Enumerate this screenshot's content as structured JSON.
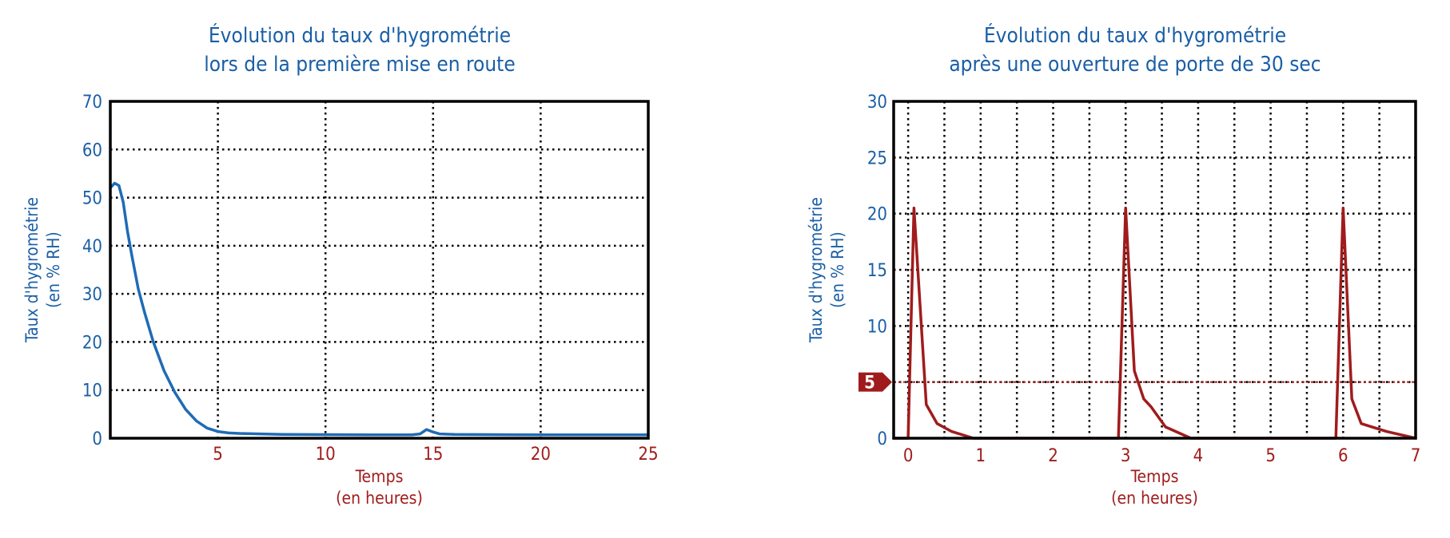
{
  "colors": {
    "title": "#1a5fa6",
    "x_axis": "#a01c1c",
    "y_axis": "#1a5fa6",
    "series_left": "#1f6bb5",
    "series_right": "#a01c1c",
    "marker": "#a01c1c"
  },
  "chart_data": [
    {
      "type": "line",
      "title_lines": [
        "Évolution du taux d'hygrométrie",
        "lors de la première mise en route"
      ],
      "xlabel_lines": [
        "Temps",
        "(en heures)"
      ],
      "ylabel_lines": [
        "Taux d'hygrométrie",
        "(en % RH)"
      ],
      "xlim": [
        0,
        25
      ],
      "ylim": [
        0,
        70
      ],
      "xticks": [
        5,
        10,
        15,
        20,
        25
      ],
      "yticks": [
        0,
        10,
        20,
        30,
        40,
        50,
        60,
        70
      ],
      "grid": true,
      "series": [
        {
          "x": [
            0,
            0.2,
            0.4,
            0.6,
            0.8,
            1.0,
            1.3,
            1.6,
            2.0,
            2.5,
            3.0,
            3.5,
            4.0,
            4.5,
            5.0,
            5.5,
            6.0,
            7.0,
            8.0,
            10.0,
            12.0,
            14.0,
            14.4,
            14.7,
            15.0,
            15.3,
            16.0,
            20.0,
            25.0
          ],
          "y": [
            52,
            53,
            52.5,
            49,
            43,
            38,
            31,
            26,
            20,
            14,
            9.5,
            6,
            3.6,
            2.1,
            1.4,
            1.1,
            1.0,
            0.9,
            0.8,
            0.75,
            0.7,
            0.7,
            0.9,
            1.8,
            1.3,
            0.9,
            0.8,
            0.7,
            0.7
          ]
        }
      ]
    },
    {
      "type": "line",
      "title_lines": [
        "Évolution du taux d'hygrométrie",
        "après une ouverture de porte de 30 sec"
      ],
      "xlabel_lines": [
        "Temps",
        "(en heures)"
      ],
      "ylabel_lines": [
        "Taux d'hygrométrie",
        "(en % RH)"
      ],
      "xlim": [
        -0.2,
        7
      ],
      "ylim": [
        0,
        30
      ],
      "xticks": [
        0,
        1,
        2,
        3,
        4,
        5,
        6,
        7
      ],
      "yticks": [
        0,
        5,
        10,
        15,
        20,
        25,
        30
      ],
      "grid": true,
      "threshold": {
        "value": 5,
        "label": "5"
      },
      "series": [
        {
          "x": [
            -0.2,
            0.0,
            0.08,
            0.25,
            0.4,
            0.6,
            0.9,
            2.9,
            3.0,
            3.12,
            3.25,
            3.35,
            3.55,
            3.9,
            5.9,
            6.0,
            6.12,
            6.25,
            6.4,
            6.6,
            7.0
          ],
          "y": [
            0,
            0,
            20.5,
            3,
            1.3,
            0.6,
            0,
            0,
            20.5,
            6,
            3.5,
            2.8,
            1,
            0,
            0,
            20.5,
            3.5,
            1.3,
            1,
            0.6,
            0
          ]
        }
      ]
    }
  ]
}
